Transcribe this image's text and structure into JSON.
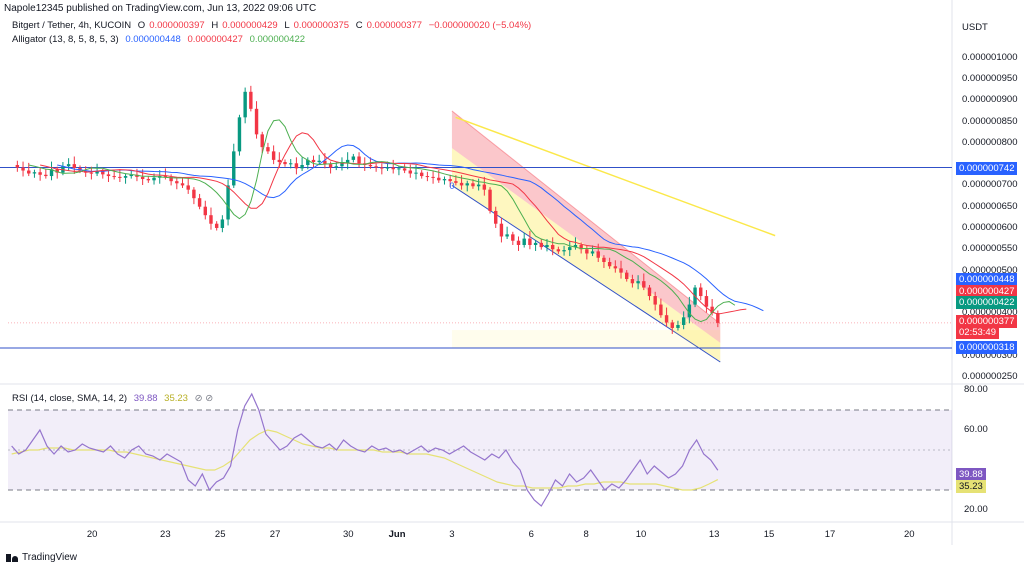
{
  "header": {
    "published": "Napole12345 published on TradingView.com, Jun 13, 2022 09:06 UTC"
  },
  "legend": {
    "symbol": "Bitgert / Tether, 4h, KUCOIN",
    "o_label": "O",
    "o_value": "0.000000397",
    "h_label": "H",
    "h_value": "0.000000429",
    "l_label": "L",
    "l_value": "0.000000375",
    "c_label": "C",
    "c_value": "0.000000377",
    "change": "−0.000000020 (−5.04%)",
    "alligator_label": "Alligator (13, 8, 5, 8, 5, 3)",
    "alligator_jaw": "0.000000448",
    "alligator_teeth": "0.000000427",
    "alligator_lips": "0.000000422"
  },
  "rsi_legend": {
    "label": "RSI (14, close, SMA, 14, 2)",
    "rsi_value": "39.88",
    "sma_value": "35.23",
    "icons": "⊘ ⊘"
  },
  "currency": "USDT",
  "drawing_label": "0",
  "brand": "TradingView",
  "colors": {
    "up": "#089981",
    "down": "#f23645",
    "jaw": "#2962ff",
    "teeth": "#f23645",
    "lips": "#4caf50",
    "rsi": "#9575cd",
    "rsi_sma": "#e6e275",
    "hline": "#3050c8",
    "trend": "#fbe84a"
  },
  "chart_data": [
    {
      "type": "line",
      "name": "price-chart",
      "y_ticks": [
        "0.000001000",
        "0.000000950",
        "0.000000900",
        "0.000000850",
        "0.000000800",
        "0.000000700",
        "0.000000650",
        "0.000000600",
        "0.000000550",
        "0.000000500",
        "0.000000400",
        "0.000000300",
        "0.000000250"
      ],
      "y_tick_values": [
        1000,
        950,
        900,
        850,
        800,
        700,
        650,
        600,
        550,
        500,
        400,
        300,
        250
      ],
      "ylim": [
        238,
        1030
      ],
      "x_ticks": [
        "20",
        "23",
        "25",
        "27",
        "30",
        "Jun",
        "3",
        "6",
        "8",
        "10",
        "13",
        "15",
        "17",
        "20"
      ],
      "x_tick_values": [
        0,
        6,
        10.5,
        15,
        21,
        25,
        29.5,
        36,
        40.5,
        45,
        51,
        55.5,
        60.5,
        67
      ],
      "xlim": [
        -6.9,
        70.5
      ],
      "close_series_x1e9": [
        748,
        742,
        735,
        728,
        731,
        725,
        722,
        738,
        730,
        745,
        750,
        741,
        735,
        730,
        728,
        733,
        726,
        722,
        720,
        718,
        722,
        725,
        720,
        715,
        712,
        718,
        722,
        720,
        710,
        705,
        700,
        690,
        670,
        650,
        630,
        610,
        600,
        620,
        700,
        780,
        860,
        920,
        880,
        820,
        790,
        780,
        760,
        755,
        750,
        752,
        740,
        748,
        760,
        755,
        758,
        750,
        742,
        745,
        752,
        760,
        768,
        752,
        748,
        745,
        742,
        740,
        742,
        738,
        740,
        735,
        728,
        730,
        722,
        720,
        718,
        712,
        715,
        710,
        706,
        700,
        705,
        698,
        702,
        690,
        640,
        610,
        580,
        585,
        570,
        560,
        575,
        560,
        565,
        555,
        560,
        550,
        545,
        548,
        555,
        560,
        550,
        540,
        545,
        530,
        520,
        510,
        505,
        495,
        480,
        470,
        475,
        460,
        440,
        420,
        395,
        378,
        365,
        372,
        390,
        420,
        460,
        440,
        415,
        400,
        377
      ],
      "lines": [
        {
          "label": "0.000000742",
          "value": 742,
          "color": "#2962ff"
        },
        {
          "label": "0.000000318",
          "value": 318,
          "color": "#2962ff"
        }
      ],
      "badges": [
        {
          "label": "0.000000742",
          "value": 742,
          "color": "#2962ff"
        },
        {
          "label": "0.000000448",
          "value": 448,
          "color": "#2962ff"
        },
        {
          "label": "0.000000427",
          "value": 427,
          "color": "#f23645"
        },
        {
          "label": "0.000000422",
          "value": 422,
          "color": "#089981"
        },
        {
          "label": "0.000000377",
          "value": 377,
          "color": "#f23645"
        },
        {
          "label": "02:53:49",
          "value": 377,
          "color": "#f23645"
        },
        {
          "label": "0.000000318",
          "value": 318,
          "color": "#2962ff"
        }
      ]
    },
    {
      "type": "line",
      "name": "rsi-chart",
      "y_ticks": [
        "80.00",
        "60.00",
        "20.00"
      ],
      "y_tick_values": [
        80,
        60,
        20
      ],
      "ylim": [
        15,
        82
      ],
      "band": [
        30,
        70
      ],
      "middle": 50,
      "rsi_series": [
        52,
        48,
        50,
        55,
        60,
        52,
        48,
        52,
        49,
        50,
        53,
        51,
        50,
        49,
        52,
        48,
        46,
        50,
        52,
        48,
        47,
        45,
        48,
        46,
        44,
        35,
        32,
        38,
        30,
        34,
        36,
        42,
        60,
        72,
        78,
        70,
        58,
        54,
        50,
        52,
        56,
        58,
        55,
        52,
        51,
        53,
        50,
        55,
        52,
        50,
        49,
        52,
        50,
        51,
        49,
        50,
        48,
        50,
        52,
        49,
        51,
        50,
        48,
        50,
        52,
        49,
        47,
        45,
        48,
        46,
        50,
        44,
        40,
        30,
        25,
        22,
        28,
        35,
        32,
        38,
        34,
        36,
        40,
        35,
        30,
        33,
        31,
        35,
        40,
        45,
        38,
        42,
        39,
        36,
        38,
        42,
        50,
        55,
        48,
        45,
        39.88
      ],
      "rsi_sma_series": [
        48,
        49,
        50,
        50,
        51,
        51,
        51,
        50,
        50,
        50,
        50,
        50,
        49,
        49,
        48,
        47,
        46,
        45,
        44,
        43,
        42,
        41,
        40,
        40,
        42,
        45,
        50,
        55,
        58,
        60,
        59,
        57,
        55,
        53,
        52,
        51,
        51,
        50,
        50,
        50,
        50,
        50,
        49,
        49,
        49,
        48,
        48,
        48,
        47,
        46,
        44,
        42,
        40,
        38,
        36,
        34,
        33,
        32,
        32,
        31,
        31,
        31,
        31,
        32,
        32,
        33,
        33,
        34,
        34,
        34,
        33,
        33,
        33,
        33,
        32,
        31,
        30,
        30,
        31,
        33,
        35.23
      ]
    }
  ]
}
